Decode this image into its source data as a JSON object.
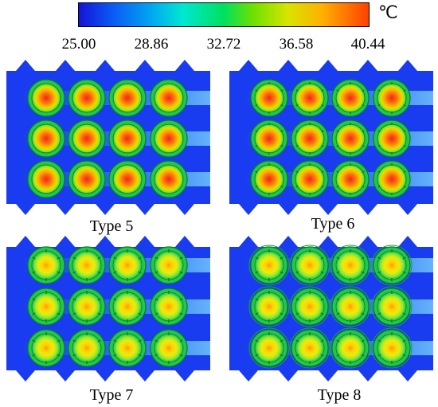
{
  "legend": {
    "unit": "℃",
    "ticks": [
      "25.00",
      "28.86",
      "32.72",
      "36.58",
      "40.44"
    ]
  },
  "panels": [
    {
      "label": "Type 5",
      "style": "ring-hot"
    },
    {
      "label": "Type 6",
      "style": "ring-fins-hot"
    },
    {
      "label": "Type 7",
      "style": "fins-cool"
    },
    {
      "label": "Type 8",
      "style": "fins-cool-double"
    }
  ],
  "colors": {
    "background_fluid": "#1a3cf0",
    "plume": "#3aa8f0",
    "ring": "#22c84a",
    "hot_core": "#f03c14",
    "warm_core": "#f0e020"
  }
}
